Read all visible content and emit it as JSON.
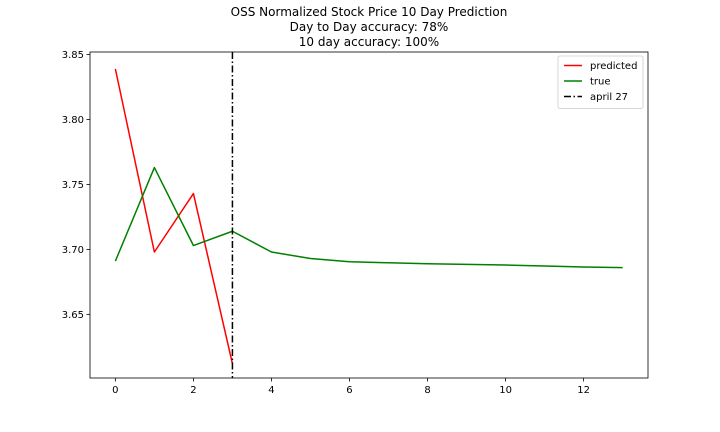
{
  "chart_data": {
    "type": "line",
    "title": [
      "OSS Normalized Stock Price 10 Day Prediction",
      "Day to Day accuracy: 78%",
      "10 day accuracy: 100%"
    ],
    "xlabel": "",
    "ylabel": "",
    "xlim": [
      -0.65,
      13.65
    ],
    "ylim": [
      3.601,
      3.852
    ],
    "xticks": [
      0,
      2,
      4,
      6,
      8,
      10,
      12
    ],
    "yticks": [
      3.65,
      3.7,
      3.75,
      3.8,
      3.85
    ],
    "ytick_labels": [
      "3.65",
      "3.70",
      "3.75",
      "3.80",
      "3.85"
    ],
    "grid": false,
    "legend_position": "top-right",
    "series": [
      {
        "name": "predicted",
        "color": "#ff0000",
        "style": "solid",
        "x": [
          0,
          1,
          2,
          3
        ],
        "y": [
          3.839,
          3.698,
          3.743,
          3.612
        ]
      },
      {
        "name": "true",
        "color": "#008000",
        "style": "solid",
        "x": [
          0,
          1,
          2,
          3,
          4,
          5,
          6,
          7,
          8,
          9,
          10,
          11,
          12,
          13
        ],
        "y": [
          3.691,
          3.763,
          3.703,
          3.714,
          3.698,
          3.693,
          3.6905,
          3.6897,
          3.689,
          3.6885,
          3.688,
          3.6872,
          3.6865,
          3.686
        ]
      }
    ],
    "vlines": [
      {
        "name": "april 27",
        "x": 3,
        "color": "#000000",
        "style": "dashdot"
      }
    ]
  }
}
